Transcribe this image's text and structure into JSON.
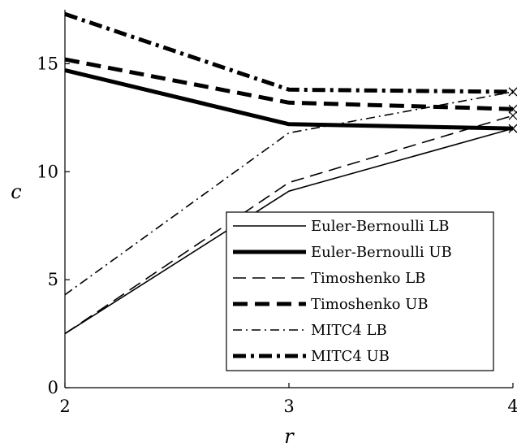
{
  "chart_data": {
    "type": "line",
    "title": "",
    "xlabel": "r",
    "ylabel": "c",
    "xlim": [
      2,
      4
    ],
    "ylim": [
      0,
      17.5
    ],
    "xticks": [
      2,
      3,
      4
    ],
    "yticks": [
      0,
      5,
      10,
      15
    ],
    "grid": false,
    "legend_position": "bottom-right",
    "x": [
      2,
      3,
      4
    ],
    "series": [
      {
        "name": "Euler-Bernoulli LB",
        "values": [
          2.5,
          9.1,
          12.0
        ],
        "style": "solid",
        "weight": "thin",
        "color": "#000000"
      },
      {
        "name": "Euler-Bernoulli UB",
        "values": [
          14.7,
          12.2,
          12.0
        ],
        "style": "solid",
        "weight": "thick",
        "color": "#000000"
      },
      {
        "name": "Timoshenko LB",
        "values": [
          2.5,
          9.5,
          12.6
        ],
        "style": "dashed",
        "weight": "thin",
        "color": "#000000"
      },
      {
        "name": "Timoshenko UB",
        "values": [
          15.2,
          13.2,
          12.9
        ],
        "style": "dashed",
        "weight": "thick",
        "color": "#000000"
      },
      {
        "name": "MITC4 LB",
        "values": [
          4.3,
          11.8,
          13.7
        ],
        "style": "dashdot",
        "weight": "thin",
        "color": "#000000"
      },
      {
        "name": "MITC4 UB",
        "values": [
          17.3,
          13.8,
          13.7
        ],
        "style": "dashdot",
        "weight": "thick",
        "color": "#000000"
      }
    ]
  }
}
